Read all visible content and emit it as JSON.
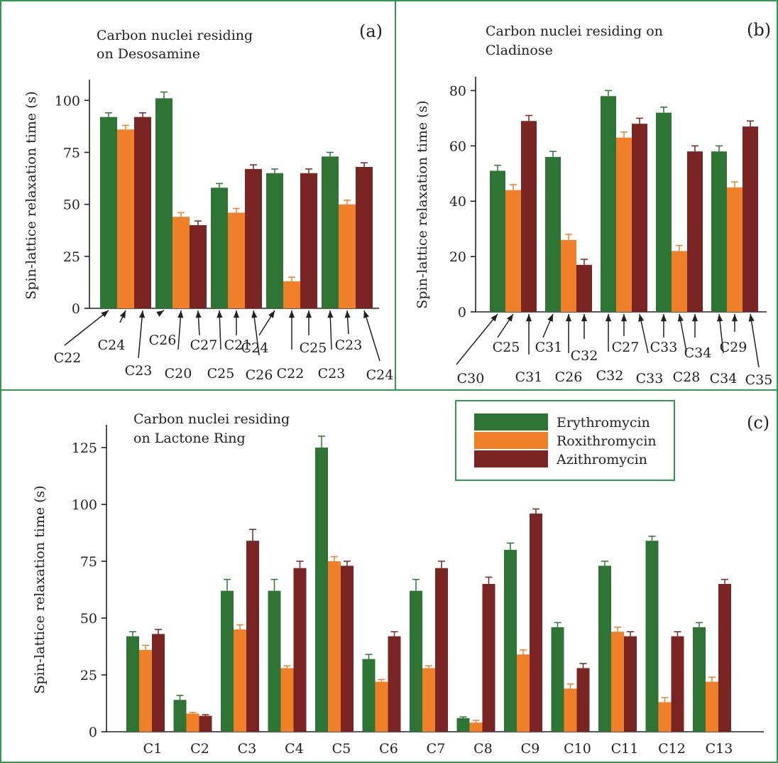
{
  "colors": {
    "erythromycin": "#2e7535",
    "roxithromycin": "#f07f2a",
    "azithromycin": "#7a2424",
    "frame": "#2e9b4f"
  },
  "legend": {
    "items": [
      {
        "label": "Erythromycin",
        "color": "#2e7535"
      },
      {
        "label": "Roxithromycin",
        "color": "#f07f2a"
      },
      {
        "label": "Azithromycin",
        "color": "#7a2424"
      }
    ]
  },
  "chart_data": [
    {
      "id": "a",
      "type": "bar",
      "panel_label": "(a)",
      "title_lines": [
        "Carbon nuclei residing",
        "on Desosamine"
      ],
      "ylabel": "Spin-lattice relaxation time (s)",
      "ylim": [
        0,
        110
      ],
      "yticks": [
        0,
        25,
        50,
        75,
        100
      ],
      "series_names": [
        "Erythromycin",
        "Roxithromycin",
        "Azithromycin"
      ],
      "groups": [
        {
          "values": [
            92,
            86,
            92
          ],
          "errors": [
            2,
            2,
            2
          ],
          "labels": [
            "C22",
            "C24",
            "C23"
          ]
        },
        {
          "values": [
            101,
            44,
            40
          ],
          "errors": [
            3,
            2,
            2
          ],
          "labels": [
            "C26",
            "C20",
            "C27"
          ]
        },
        {
          "values": [
            58,
            46,
            67
          ],
          "errors": [
            2,
            2,
            2
          ],
          "labels": [
            "C25",
            "C21",
            "C26"
          ]
        },
        {
          "values": [
            65,
            13,
            65
          ],
          "errors": [
            2,
            2,
            2
          ],
          "labels": [
            "C24",
            "C22",
            "C25"
          ]
        },
        {
          "values": [
            73,
            50,
            68
          ],
          "errors": [
            2,
            2,
            2
          ],
          "labels": [
            "C23",
            "C23",
            "C24"
          ]
        }
      ]
    },
    {
      "id": "b",
      "type": "bar",
      "panel_label": "(b)",
      "title_lines": [
        "Carbon nuclei residing on",
        "Cladinose"
      ],
      "ylabel": "Spin-lattice relaxation time (s)",
      "ylim": [
        0,
        85
      ],
      "yticks": [
        0,
        20,
        40,
        60,
        80
      ],
      "series_names": [
        "Erythromycin",
        "Roxithromycin",
        "Azithromycin"
      ],
      "groups": [
        {
          "values": [
            51,
            44,
            69
          ],
          "errors": [
            2,
            2,
            2
          ],
          "labels": [
            "C30",
            "C25",
            "C31"
          ]
        },
        {
          "values": [
            56,
            26,
            17
          ],
          "errors": [
            2,
            2,
            2
          ],
          "labels": [
            "C31",
            "C26",
            "C32"
          ]
        },
        {
          "values": [
            78,
            63,
            68
          ],
          "errors": [
            2,
            2,
            2
          ],
          "labels": [
            "C32",
            "C27",
            "C33"
          ]
        },
        {
          "values": [
            72,
            22,
            58
          ],
          "errors": [
            2,
            2,
            2
          ],
          "labels": [
            "C33",
            "C28",
            "C34"
          ]
        },
        {
          "values": [
            58,
            45,
            67
          ],
          "errors": [
            2,
            2,
            2
          ],
          "labels": [
            "C34",
            "C29",
            "C35"
          ]
        }
      ]
    },
    {
      "id": "c",
      "type": "bar",
      "panel_label": "(c)",
      "title_lines": [
        "Carbon nuclei residing",
        "on Lactone Ring"
      ],
      "ylabel": "Spin-lattice relaxation time (s)",
      "ylim": [
        0,
        135
      ],
      "yticks": [
        0,
        25,
        50,
        75,
        100,
        125
      ],
      "series_names": [
        "Erythromycin",
        "Roxithromycin",
        "Azithromycin"
      ],
      "categories": [
        "C1",
        "C2",
        "C3",
        "C4",
        "C5",
        "C6",
        "C7",
        "C8",
        "C9",
        "C10",
        "C11",
        "C12",
        "C13"
      ],
      "series": [
        {
          "name": "Erythromycin",
          "values": [
            42,
            14,
            62,
            62,
            125,
            32,
            62,
            6,
            80,
            46,
            73,
            84,
            46
          ],
          "errors": [
            2,
            2,
            5,
            5,
            5,
            2,
            5,
            0.5,
            3,
            2,
            2,
            2,
            2
          ]
        },
        {
          "name": "Roxithromycin",
          "values": [
            36,
            8,
            45,
            28,
            75,
            22,
            28,
            4,
            34,
            19,
            44,
            13,
            22
          ],
          "errors": [
            2,
            0.5,
            2,
            1,
            2,
            1,
            1,
            1,
            2,
            2,
            2,
            2,
            2
          ]
        },
        {
          "name": "Azithromycin",
          "values": [
            43,
            7,
            84,
            72,
            73,
            42,
            72,
            65,
            96,
            28,
            42,
            42,
            65
          ],
          "errors": [
            2,
            0.5,
            5,
            3,
            2,
            2,
            3,
            3,
            2,
            2,
            2,
            2,
            2
          ]
        }
      ]
    }
  ]
}
